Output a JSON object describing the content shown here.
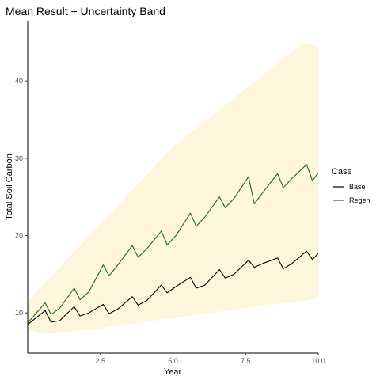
{
  "chart_data": {
    "type": "line",
    "title": "Mean Result + Uncertainty Band",
    "xlabel": "Year",
    "ylabel": "Total Soil Carbon",
    "xlim": [
      0,
      10
    ],
    "ylim": [
      4.8,
      47.8
    ],
    "x_ticks": [
      {
        "value": 2.5,
        "label": "2.5"
      },
      {
        "value": 5.0,
        "label": "5.0"
      },
      {
        "value": 7.5,
        "label": "7.5"
      },
      {
        "value": 10.0,
        "label": "10.0"
      }
    ],
    "y_ticks": [
      {
        "value": 10,
        "label": "10"
      },
      {
        "value": 20,
        "label": "20"
      },
      {
        "value": 30,
        "label": "30"
      },
      {
        "value": 40,
        "label": "40"
      }
    ],
    "grid": false,
    "legend": {
      "title": "Case",
      "placement": "right"
    },
    "band": {
      "color": "#fdf6dd",
      "x": [
        0,
        0.5,
        1.0,
        1.5,
        2.0,
        2.5,
        3.0,
        3.5,
        4.0,
        4.5,
        5.0,
        5.5,
        6.0,
        6.5,
        7.0,
        7.5,
        8.0,
        8.5,
        9.0,
        9.5,
        10.0
      ],
      "lower": [
        7.8,
        7.3,
        7.5,
        7.6,
        7.8,
        8.0,
        8.3,
        8.6,
        8.8,
        9.1,
        9.3,
        9.6,
        9.9,
        10.1,
        10.4,
        10.6,
        10.9,
        11.1,
        11.4,
        11.6,
        11.9
      ],
      "upper": [
        11.5,
        13.5,
        15.5,
        17.5,
        19.5,
        21.5,
        23.5,
        25.5,
        27.5,
        29.5,
        31.5,
        33.0,
        34.5,
        36.0,
        37.5,
        39.0,
        40.5,
        42.0,
        43.5,
        45.0,
        44.5
      ]
    },
    "series": [
      {
        "name": "Base",
        "color": "#000000",
        "x": [
          0,
          0.6,
          0.8,
          1.1,
          1.6,
          1.8,
          2.1,
          2.6,
          2.8,
          3.1,
          3.6,
          3.8,
          4.1,
          4.6,
          4.8,
          5.1,
          5.6,
          5.8,
          6.1,
          6.6,
          6.8,
          7.1,
          7.6,
          7.8,
          8.1,
          8.6,
          8.8,
          9.1,
          9.6,
          9.8,
          10.0
        ],
        "values": [
          8.5,
          10.3,
          8.8,
          9.0,
          10.8,
          9.6,
          10.0,
          11.1,
          9.9,
          10.5,
          12.1,
          11.0,
          11.6,
          13.6,
          12.6,
          13.4,
          14.6,
          13.2,
          13.6,
          15.6,
          14.5,
          15.0,
          16.8,
          15.9,
          16.4,
          17.1,
          15.7,
          16.4,
          18.0,
          16.9,
          17.7
        ]
      },
      {
        "name": "Regen",
        "color": "#1a6b1a",
        "x": [
          0,
          0.6,
          0.8,
          1.1,
          1.6,
          1.8,
          2.1,
          2.6,
          2.8,
          3.1,
          3.6,
          3.8,
          4.1,
          4.6,
          4.8,
          5.1,
          5.6,
          5.8,
          6.1,
          6.6,
          6.8,
          7.1,
          7.6,
          7.8,
          8.1,
          8.6,
          8.8,
          9.1,
          9.6,
          9.8,
          10.0
        ],
        "values": [
          8.7,
          11.3,
          9.8,
          10.6,
          13.2,
          11.7,
          12.7,
          16.2,
          14.8,
          16.2,
          18.7,
          17.2,
          18.3,
          20.6,
          18.8,
          20.0,
          22.9,
          21.2,
          22.4,
          25.0,
          23.6,
          24.8,
          27.6,
          24.1,
          25.6,
          28.0,
          26.2,
          27.4,
          29.2,
          27.1,
          28.1
        ]
      }
    ]
  }
}
